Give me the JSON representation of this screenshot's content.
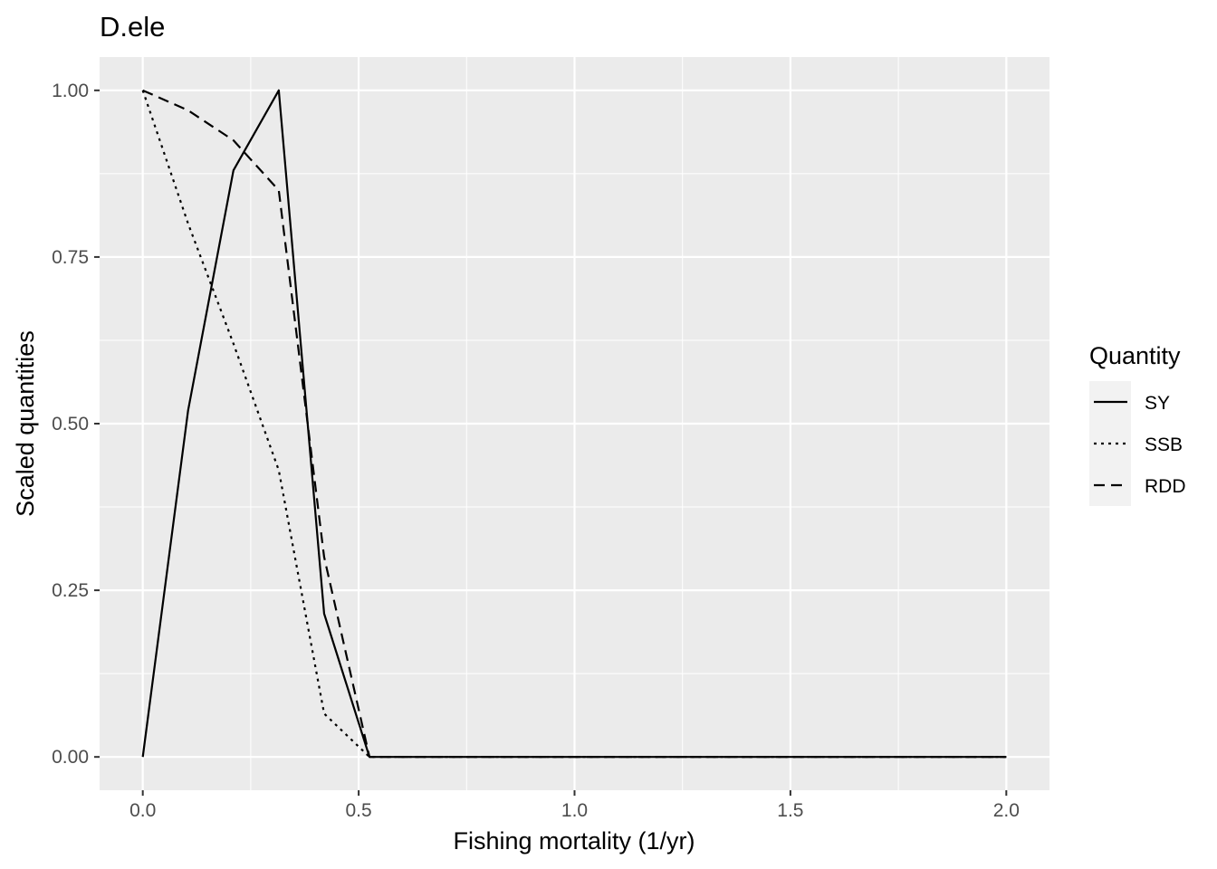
{
  "chart_data": {
    "type": "line",
    "title": "D.ele",
    "xlabel": "Fishing mortality (1/yr)",
    "ylabel": "Scaled quantities",
    "xlim": [
      -0.1,
      2.1
    ],
    "ylim": [
      -0.05,
      1.05
    ],
    "x_ticks": [
      0.0,
      0.5,
      1.0,
      1.5,
      2.0
    ],
    "x_tick_labels": [
      "0.0",
      "0.5",
      "1.0",
      "1.5",
      "2.0"
    ],
    "y_ticks": [
      0.0,
      0.25,
      0.5,
      0.75,
      1.0
    ],
    "y_tick_labels": [
      "0.00",
      "0.25",
      "0.50",
      "0.75",
      "1.00"
    ],
    "grid": true,
    "background": "#ebebeb",
    "legend": {
      "title": "Quantity",
      "placement": "right",
      "entries": [
        "SY",
        "SSB",
        "RDD"
      ]
    },
    "series": [
      {
        "name": "SY",
        "linetype": "solid",
        "color": "#000000",
        "x": [
          0.0,
          0.105,
          0.21,
          0.315,
          0.42,
          0.525,
          0.63,
          0.84,
          1.05,
          1.26,
          1.47,
          1.68,
          1.89,
          2.0
        ],
        "y": [
          0.0,
          0.52,
          0.88,
          1.0,
          0.215,
          0.0,
          0.0,
          0.0,
          0.0,
          0.0,
          0.0,
          0.0,
          0.0,
          0.0
        ]
      },
      {
        "name": "SSB",
        "linetype": "dotted",
        "color": "#000000",
        "x": [
          0.0,
          0.105,
          0.21,
          0.315,
          0.42,
          0.525,
          0.63,
          0.84,
          1.05,
          1.26,
          1.47,
          1.68,
          1.89,
          2.0
        ],
        "y": [
          1.0,
          0.8,
          0.62,
          0.43,
          0.065,
          0.0,
          0.0,
          0.0,
          0.0,
          0.0,
          0.0,
          0.0,
          0.0,
          0.0
        ]
      },
      {
        "name": "RDD",
        "linetype": "dashed",
        "color": "#000000",
        "x": [
          0.0,
          0.105,
          0.21,
          0.315,
          0.42,
          0.525,
          0.63,
          0.84,
          1.05,
          1.26,
          1.47,
          1.68,
          1.89,
          2.0
        ],
        "y": [
          1.0,
          0.97,
          0.925,
          0.85,
          0.3,
          0.0,
          0.0,
          0.0,
          0.0,
          0.0,
          0.0,
          0.0,
          0.0,
          0.0
        ]
      }
    ]
  }
}
